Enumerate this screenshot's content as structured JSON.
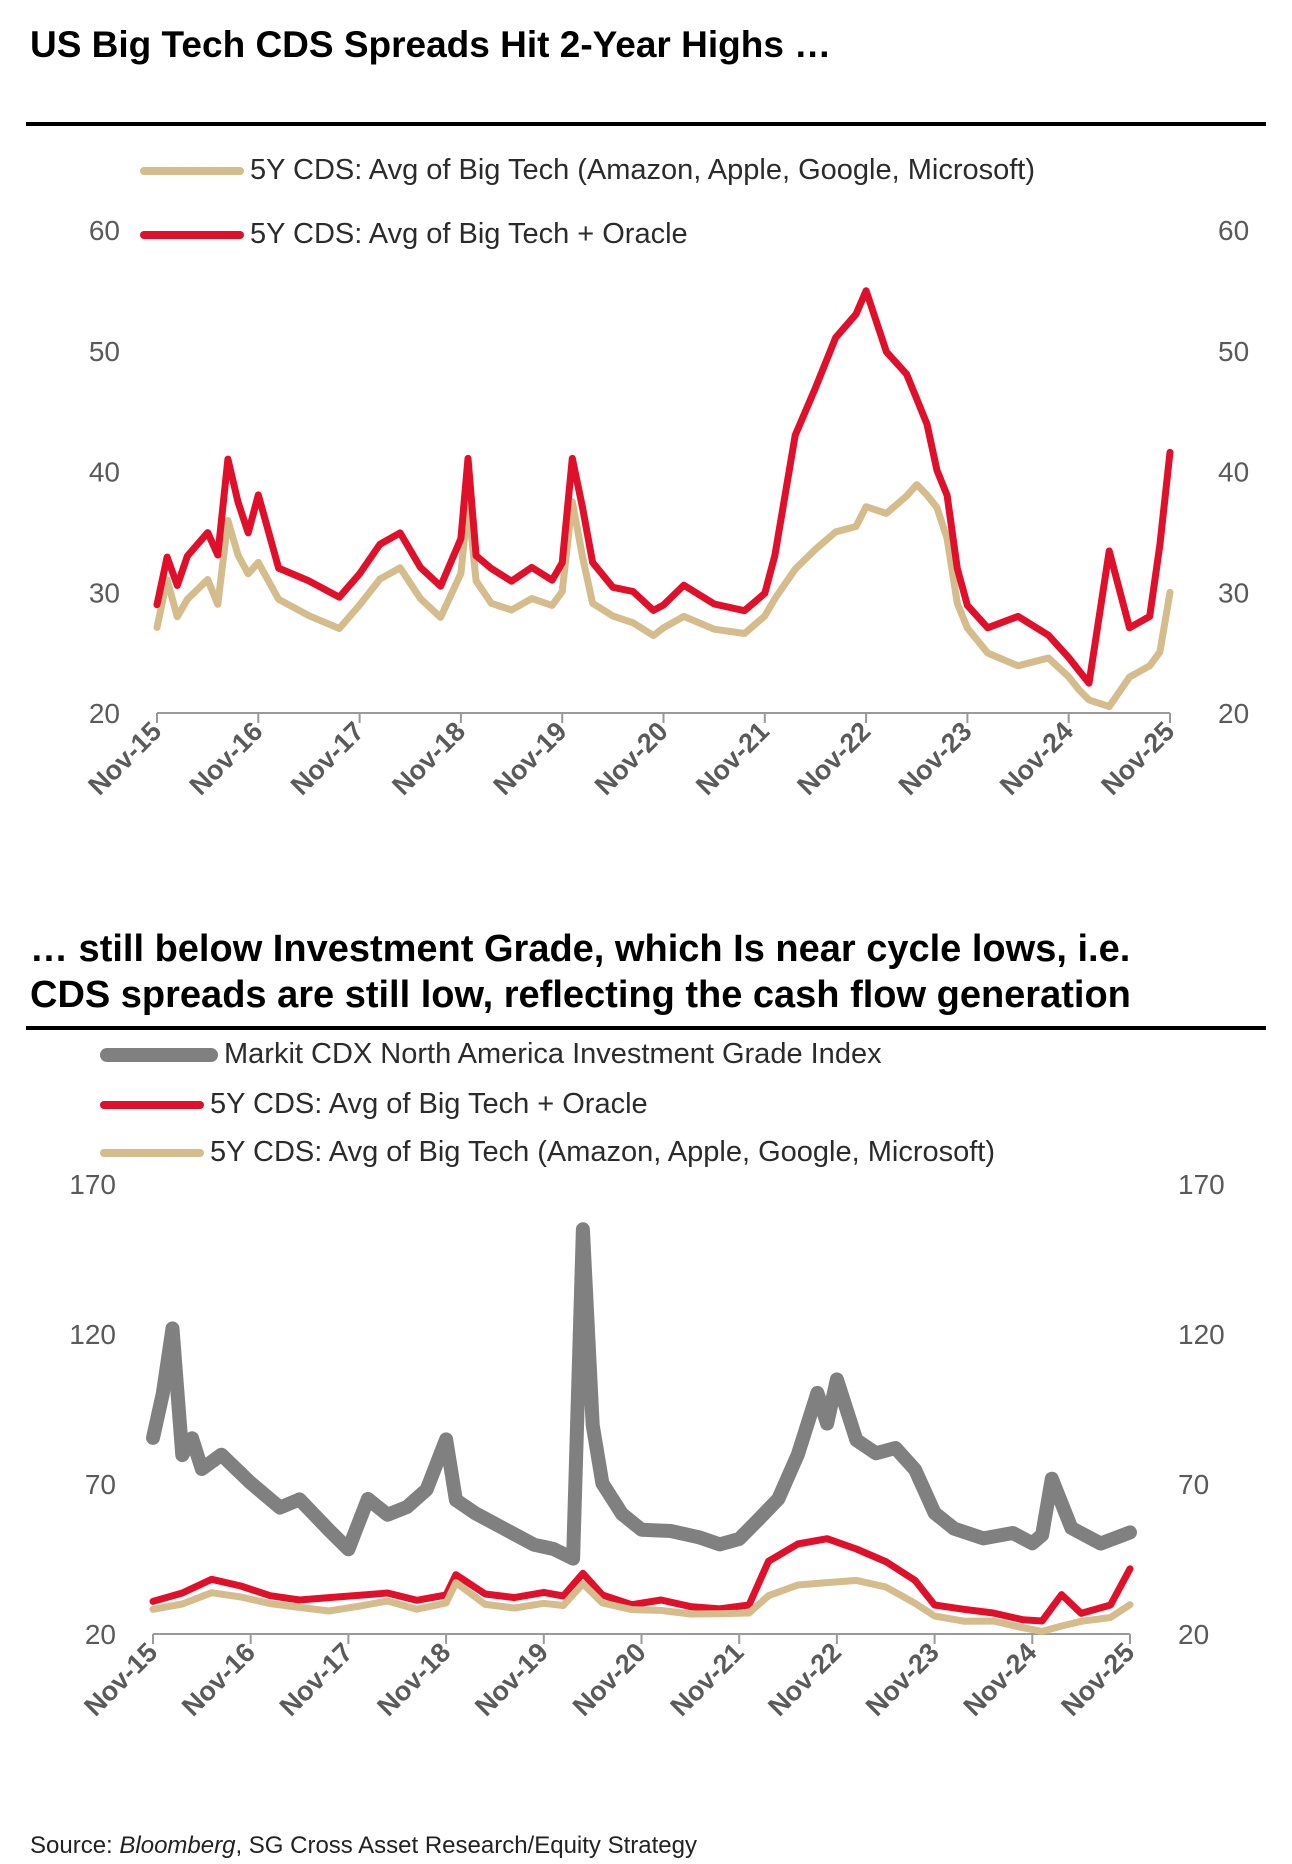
{
  "titles": {
    "top": "US Big Tech CDS Spreads Hit 2-Year Highs …",
    "bottom_line1": "… still below Investment Grade, which Is near cycle lows, i.e.",
    "bottom_line2": "CDS spreads are still low, reflecting the cash flow generation"
  },
  "colors": {
    "bigtech": "#d4bc8c",
    "oracle": "#e0102a",
    "cdx": "#808080"
  },
  "chart_data": [
    {
      "type": "line",
      "title": "US Big Tech CDS Spreads Hit 2-Year Highs …",
      "x_ticks": [
        "Nov-15",
        "Nov-16",
        "Nov-17",
        "Nov-18",
        "Nov-19",
        "Nov-20",
        "Nov-21",
        "Nov-22",
        "Nov-23",
        "Nov-24",
        "Nov-25"
      ],
      "y_ticks": [
        20,
        30,
        40,
        50,
        60
      ],
      "ylim": [
        20,
        60
      ],
      "legend": [
        "5Y CDS: Avg of Big Tech (Amazon, Apple, Google, Microsoft)",
        "5Y CDS: Avg of Big Tech + Oracle"
      ],
      "series": [
        {
          "name": "5Y CDS: Avg of Big Tech (Amazon, Apple, Google, Microsoft)",
          "color": "#d4bc8c",
          "x": [
            0,
            0.1,
            0.2,
            0.3,
            0.5,
            0.6,
            0.7,
            0.8,
            0.9,
            1.0,
            1.2,
            1.5,
            1.8,
            2.0,
            2.2,
            2.4,
            2.6,
            2.8,
            3.0,
            3.07,
            3.15,
            3.3,
            3.5,
            3.7,
            3.9,
            4.0,
            4.1,
            4.2,
            4.3,
            4.5,
            4.7,
            4.9,
            5.0,
            5.2,
            5.5,
            5.8,
            6.0,
            6.1,
            6.3,
            6.5,
            6.7,
            6.9,
            7.0,
            7.2,
            7.4,
            7.5,
            7.6,
            7.7,
            7.8,
            7.9,
            8.0,
            8.2,
            8.5,
            8.8,
            9.0,
            9.1,
            9.2,
            9.4,
            9.6,
            9.8,
            9.9,
            10.0
          ],
          "values": [
            27,
            31,
            28,
            29.5,
            31,
            29,
            36,
            33,
            31.5,
            32.5,
            29.5,
            28,
            27,
            29,
            31,
            32,
            29.5,
            28,
            31.5,
            37.5,
            31,
            29,
            28.5,
            29.5,
            29,
            30,
            37.5,
            33,
            29,
            28,
            27.5,
            26.5,
            27,
            28,
            27,
            26.5,
            28,
            29.5,
            32,
            33.5,
            35,
            35.5,
            37,
            36.5,
            38,
            39,
            38,
            37,
            34.5,
            29,
            27,
            25,
            24,
            24.5,
            23,
            22,
            21,
            20.5,
            23,
            24,
            25,
            30
          ]
        },
        {
          "name": "5Y CDS: Avg of Big Tech + Oracle",
          "color": "#e0102a",
          "x": [
            0,
            0.1,
            0.2,
            0.3,
            0.5,
            0.6,
            0.7,
            0.8,
            0.9,
            1.0,
            1.2,
            1.5,
            1.8,
            2.0,
            2.2,
            2.4,
            2.6,
            2.8,
            3.0,
            3.07,
            3.15,
            3.3,
            3.5,
            3.7,
            3.9,
            4.0,
            4.1,
            4.2,
            4.3,
            4.5,
            4.7,
            4.9,
            5.0,
            5.2,
            5.5,
            5.8,
            6.0,
            6.1,
            6.3,
            6.5,
            6.7,
            6.9,
            7.0,
            7.2,
            7.4,
            7.5,
            7.6,
            7.7,
            7.8,
            7.9,
            8.0,
            8.2,
            8.5,
            8.8,
            9.0,
            9.1,
            9.2,
            9.4,
            9.6,
            9.8,
            9.9,
            10.0
          ],
          "values": [
            29,
            33,
            30.5,
            33,
            35,
            33,
            41,
            37.5,
            35,
            38,
            32,
            31,
            29.5,
            31.5,
            34,
            35,
            32,
            30.5,
            34.5,
            41,
            33,
            32,
            31,
            32,
            31,
            32.5,
            41,
            37,
            32.5,
            30.5,
            30,
            28.5,
            29,
            30.5,
            29,
            28.5,
            30,
            33,
            43,
            47,
            51,
            53,
            55,
            50,
            48,
            46,
            44,
            40,
            38,
            32,
            29,
            27,
            28,
            26.5,
            24.5,
            23.5,
            22.5,
            33.5,
            27,
            28,
            34,
            41.5
          ]
        }
      ]
    },
    {
      "type": "line",
      "title": "… still below Investment Grade, which Is near cycle lows, i.e. CDS spreads are still low, reflecting the cash flow generation",
      "x_ticks": [
        "Nov-15",
        "Nov-16",
        "Nov-17",
        "Nov-18",
        "Nov-19",
        "Nov-20",
        "Nov-21",
        "Nov-22",
        "Nov-23",
        "Nov-24",
        "Nov-25"
      ],
      "y_ticks": [
        20,
        70,
        120,
        170
      ],
      "ylim": [
        20,
        170
      ],
      "legend": [
        "Markit CDX North America Investment Grade Index",
        "5Y CDS: Avg of Big Tech + Oracle",
        "5Y CDS: Avg of Big Tech (Amazon, Apple, Google, Microsoft)"
      ],
      "series": [
        {
          "name": "Markit CDX North America Investment Grade Index",
          "color": "#808080",
          "x": [
            0,
            0.1,
            0.2,
            0.3,
            0.4,
            0.5,
            0.7,
            1.0,
            1.3,
            1.5,
            1.8,
            2.0,
            2.2,
            2.4,
            2.6,
            2.8,
            3.0,
            3.1,
            3.3,
            3.6,
            3.9,
            4.1,
            4.3,
            4.4,
            4.5,
            4.6,
            4.8,
            5.0,
            5.3,
            5.6,
            5.8,
            6.0,
            6.2,
            6.4,
            6.6,
            6.8,
            6.9,
            7.0,
            7.2,
            7.4,
            7.6,
            7.8,
            8.0,
            8.2,
            8.5,
            8.8,
            9.0,
            9.1,
            9.2,
            9.4,
            9.7,
            10.0
          ],
          "values": [
            85,
            100,
            122,
            80,
            85,
            75,
            80,
            70,
            62,
            65,
            55,
            48,
            65,
            60,
            62,
            68,
            85,
            65,
            60,
            55,
            50,
            48,
            45,
            155,
            90,
            70,
            60,
            55,
            54,
            52,
            50,
            52,
            58,
            65,
            80,
            100,
            90,
            105,
            85,
            80,
            82,
            75,
            60,
            55,
            52,
            54,
            50,
            53,
            72,
            55,
            50,
            54
          ]
        },
        {
          "name": "5Y CDS: Avg of Big Tech + Oracle",
          "color": "#e0102a",
          "x": [
            0,
            0.3,
            0.6,
            0.9,
            1.2,
            1.5,
            1.8,
            2.1,
            2.4,
            2.7,
            3.0,
            3.1,
            3.4,
            3.7,
            4.0,
            4.2,
            4.4,
            4.6,
            4.9,
            5.2,
            5.5,
            5.8,
            6.1,
            6.3,
            6.6,
            6.9,
            7.2,
            7.5,
            7.8,
            8.0,
            8.3,
            8.6,
            8.9,
            9.1,
            9.3,
            9.5,
            9.8,
            10.0
          ],
          "values": [
            31,
            34,
            38,
            36,
            33,
            31,
            32,
            33,
            34,
            31,
            33,
            40,
            33,
            32,
            34,
            33,
            40,
            33,
            30,
            31,
            29,
            28.5,
            30,
            44,
            50,
            52,
            48,
            44,
            38,
            30,
            28,
            27,
            25,
            24,
            33,
            27,
            30,
            41.5
          ]
        },
        {
          "name": "5Y CDS: Avg of Big Tech (Amazon, Apple, Google, Microsoft)",
          "color": "#d4bc8c",
          "x": [
            0,
            0.3,
            0.6,
            0.9,
            1.2,
            1.5,
            1.8,
            2.1,
            2.4,
            2.7,
            3.0,
            3.1,
            3.4,
            3.7,
            4.0,
            4.2,
            4.4,
            4.6,
            4.9,
            5.2,
            5.5,
            5.8,
            6.1,
            6.3,
            6.6,
            6.9,
            7.2,
            7.5,
            7.8,
            8.0,
            8.3,
            8.6,
            8.9,
            9.1,
            9.3,
            9.5,
            9.8,
            10.0
          ],
          "values": [
            28,
            30,
            34,
            32,
            30,
            29,
            28,
            29,
            31,
            28.5,
            30,
            37,
            30,
            29,
            30,
            29.5,
            37,
            30,
            28,
            28,
            27,
            26.5,
            27,
            33,
            36,
            37,
            38,
            36,
            30,
            26,
            24.5,
            24,
            22,
            21,
            23,
            24,
            25.5,
            30
          ]
        }
      ]
    }
  ],
  "source": {
    "prefix": "Source: ",
    "italic": "Bloomberg",
    "rest": ", SG Cross Asset Research/Equity Strategy"
  }
}
